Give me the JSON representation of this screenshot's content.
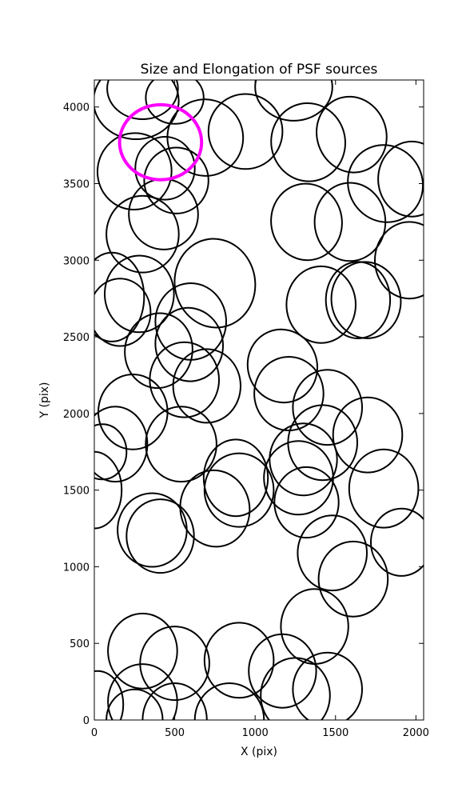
{
  "chart_data": {
    "type": "scatter",
    "title": "Size and Elongation of PSF sources",
    "xlabel": "X (pix)",
    "ylabel": "Y (pix)",
    "xlim": [
      0,
      2048
    ],
    "ylim": [
      0,
      4176
    ],
    "xticks": [
      0,
      500,
      1000,
      1500,
      2000
    ],
    "yticks": [
      0,
      500,
      1000,
      1500,
      2000,
      2500,
      3000,
      3500,
      4000
    ],
    "grid": false,
    "legend": "none",
    "marker": "ellipse",
    "colors": {
      "outline": "#000000",
      "highlight": "#ff00ff",
      "background": "#ffffff"
    },
    "highlight": {
      "x": 412,
      "y": 3770,
      "rx": 255,
      "ry": 245,
      "angle": 0
    },
    "sources": [
      {
        "x": 260,
        "y": 4040,
        "rx": 265,
        "ry": 250,
        "angle": 0
      },
      {
        "x": 300,
        "y": 4120,
        "rx": 220,
        "ry": 200,
        "angle": 0
      },
      {
        "x": 500,
        "y": 4060,
        "rx": 180,
        "ry": 170,
        "angle": 0
      },
      {
        "x": 690,
        "y": 3800,
        "rx": 235,
        "ry": 250,
        "angle": 20
      },
      {
        "x": 940,
        "y": 3840,
        "rx": 230,
        "ry": 245,
        "angle": 0
      },
      {
        "x": 1240,
        "y": 4130,
        "rx": 240,
        "ry": 220,
        "angle": 0
      },
      {
        "x": 1330,
        "y": 3770,
        "rx": 230,
        "ry": 255,
        "angle": 10
      },
      {
        "x": 1600,
        "y": 3820,
        "rx": 215,
        "ry": 250,
        "angle": 20
      },
      {
        "x": 1810,
        "y": 3500,
        "rx": 230,
        "ry": 255,
        "angle": 30
      },
      {
        "x": 1975,
        "y": 3530,
        "rx": 210,
        "ry": 245,
        "angle": 0
      },
      {
        "x": 440,
        "y": 3600,
        "rx": 185,
        "ry": 205,
        "angle": 0
      },
      {
        "x": 510,
        "y": 3520,
        "rx": 200,
        "ry": 215,
        "angle": 0
      },
      {
        "x": 250,
        "y": 3580,
        "rx": 230,
        "ry": 250,
        "angle": -10
      },
      {
        "x": 430,
        "y": 3300,
        "rx": 215,
        "ry": 230,
        "angle": 10
      },
      {
        "x": 300,
        "y": 3170,
        "rx": 225,
        "ry": 250,
        "angle": 0
      },
      {
        "x": 1320,
        "y": 3250,
        "rx": 220,
        "ry": 250,
        "angle": 10
      },
      {
        "x": 1590,
        "y": 3250,
        "rx": 220,
        "ry": 255,
        "angle": 0
      },
      {
        "x": 1960,
        "y": 3000,
        "rx": 215,
        "ry": 250,
        "angle": 0
      },
      {
        "x": 750,
        "y": 2850,
        "rx": 250,
        "ry": 290,
        "angle": 10
      },
      {
        "x": 110,
        "y": 2760,
        "rx": 200,
        "ry": 290,
        "angle": 0
      },
      {
        "x": 280,
        "y": 2780,
        "rx": 215,
        "ry": 250,
        "angle": 0
      },
      {
        "x": 160,
        "y": 2660,
        "rx": 190,
        "ry": 220,
        "angle": 0
      },
      {
        "x": 600,
        "y": 2600,
        "rx": 220,
        "ry": 250,
        "angle": 0
      },
      {
        "x": 590,
        "y": 2450,
        "rx": 210,
        "ry": 240,
        "angle": 10
      },
      {
        "x": 400,
        "y": 2410,
        "rx": 210,
        "ry": 245,
        "angle": -10
      },
      {
        "x": 560,
        "y": 2220,
        "rx": 215,
        "ry": 245,
        "angle": 0
      },
      {
        "x": 700,
        "y": 2180,
        "rx": 210,
        "ry": 240,
        "angle": 0
      },
      {
        "x": 1410,
        "y": 2710,
        "rx": 215,
        "ry": 250,
        "angle": 0
      },
      {
        "x": 1640,
        "y": 2740,
        "rx": 200,
        "ry": 250,
        "angle": 0
      },
      {
        "x": 1690,
        "y": 2740,
        "rx": 215,
        "ry": 250,
        "angle": 10
      },
      {
        "x": 1170,
        "y": 2310,
        "rx": 215,
        "ry": 240,
        "angle": 20
      },
      {
        "x": 1210,
        "y": 2130,
        "rx": 215,
        "ry": 240,
        "angle": 0
      },
      {
        "x": 1450,
        "y": 2040,
        "rx": 215,
        "ry": 245,
        "angle": 0
      },
      {
        "x": 1420,
        "y": 1810,
        "rx": 215,
        "ry": 245,
        "angle": 0
      },
      {
        "x": 1300,
        "y": 1700,
        "rx": 210,
        "ry": 235,
        "angle": 0
      },
      {
        "x": 1700,
        "y": 1860,
        "rx": 215,
        "ry": 245,
        "angle": 0
      },
      {
        "x": 1800,
        "y": 1510,
        "rx": 215,
        "ry": 255,
        "angle": 0
      },
      {
        "x": 1270,
        "y": 1580,
        "rx": 215,
        "ry": 240,
        "angle": 0
      },
      {
        "x": 1320,
        "y": 1420,
        "rx": 200,
        "ry": 230,
        "angle": 0
      },
      {
        "x": 240,
        "y": 2010,
        "rx": 215,
        "ry": 245,
        "angle": 0
      },
      {
        "x": 130,
        "y": 1800,
        "rx": 200,
        "ry": 245,
        "angle": 0
      },
      {
        "x": 540,
        "y": 1800,
        "rx": 220,
        "ry": 245,
        "angle": 0
      },
      {
        "x": 50,
        "y": 1750,
        "rx": 150,
        "ry": 180,
        "angle": 0
      },
      {
        "x": 0,
        "y": 1500,
        "rx": 170,
        "ry": 250,
        "angle": 0
      },
      {
        "x": 880,
        "y": 1580,
        "rx": 200,
        "ry": 250,
        "angle": 0
      },
      {
        "x": 900,
        "y": 1500,
        "rx": 215,
        "ry": 240,
        "angle": 0
      },
      {
        "x": 750,
        "y": 1380,
        "rx": 215,
        "ry": 250,
        "angle": 10
      },
      {
        "x": 360,
        "y": 1240,
        "rx": 215,
        "ry": 240,
        "angle": 0
      },
      {
        "x": 410,
        "y": 1200,
        "rx": 210,
        "ry": 240,
        "angle": 0
      },
      {
        "x": 1480,
        "y": 1090,
        "rx": 215,
        "ry": 245,
        "angle": 0
      },
      {
        "x": 1610,
        "y": 920,
        "rx": 215,
        "ry": 245,
        "angle": 0
      },
      {
        "x": 1910,
        "y": 1160,
        "rx": 190,
        "ry": 220,
        "angle": 0
      },
      {
        "x": 1370,
        "y": 610,
        "rx": 210,
        "ry": 245,
        "angle": 0
      },
      {
        "x": 300,
        "y": 450,
        "rx": 215,
        "ry": 245,
        "angle": 0
      },
      {
        "x": 500,
        "y": 370,
        "rx": 215,
        "ry": 240,
        "angle": 0
      },
      {
        "x": 900,
        "y": 390,
        "rx": 215,
        "ry": 245,
        "angle": 0
      },
      {
        "x": 1170,
        "y": 320,
        "rx": 210,
        "ry": 240,
        "angle": 0
      },
      {
        "x": 1450,
        "y": 200,
        "rx": 215,
        "ry": 240,
        "angle": 0
      },
      {
        "x": 1250,
        "y": 160,
        "rx": 215,
        "ry": 245,
        "angle": 0
      },
      {
        "x": 20,
        "y": 100,
        "rx": 160,
        "ry": 220,
        "angle": 0
      },
      {
        "x": 300,
        "y": 120,
        "rx": 215,
        "ry": 245,
        "angle": 0
      },
      {
        "x": 250,
        "y": 0,
        "rx": 175,
        "ry": 200,
        "angle": 0
      },
      {
        "x": 500,
        "y": 0,
        "rx": 200,
        "ry": 240,
        "angle": 0
      },
      {
        "x": 840,
        "y": 0,
        "rx": 215,
        "ry": 240,
        "angle": 0
      }
    ]
  }
}
